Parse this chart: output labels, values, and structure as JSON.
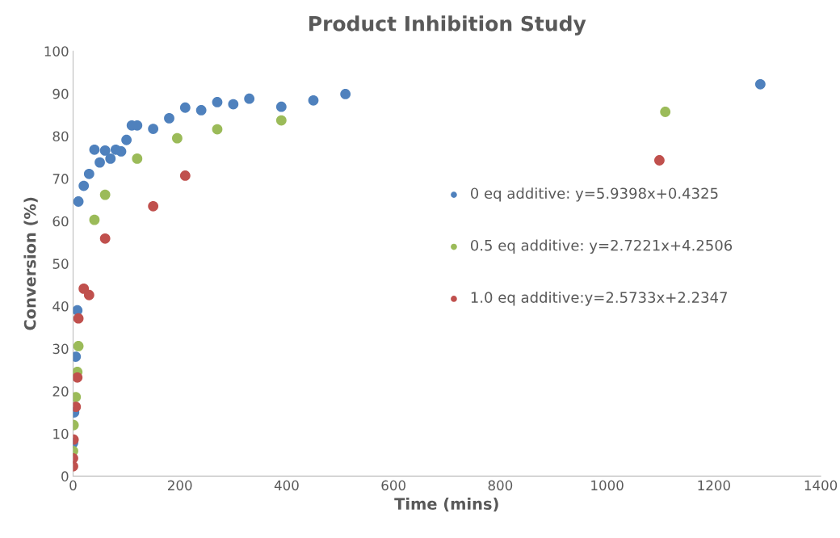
{
  "chart_data": {
    "type": "scatter",
    "title": "Product Inhibition Study",
    "xlabel": "Time (mins)",
    "ylabel": "Conversion (%)",
    "xlim": [
      0,
      1400
    ],
    "xticks": [
      0,
      200,
      400,
      600,
      800,
      1000,
      1200,
      1400
    ],
    "ylim": [
      0,
      100
    ],
    "yticks": [
      0,
      10,
      20,
      30,
      40,
      50,
      60,
      70,
      80,
      90,
      100
    ],
    "grid": false,
    "legend": "right",
    "marker": "circle",
    "series": [
      {
        "name": "0 eq additive: y=5.9398x+0.4325",
        "color": "#4f81bd",
        "x": [
          0,
          2,
          5,
          8,
          10,
          20,
          30,
          40,
          50,
          60,
          70,
          80,
          90,
          100,
          110,
          120,
          150,
          180,
          210,
          240,
          270,
          300,
          330,
          390,
          450,
          510,
          1287
        ],
        "values": [
          7.8,
          15.0,
          28.1,
          39.0,
          64.6,
          68.3,
          71.1,
          76.8,
          73.8,
          76.6,
          74.7,
          76.8,
          76.4,
          79.1,
          82.5,
          82.5,
          81.7,
          84.2,
          86.7,
          86.1,
          88.0,
          87.5,
          88.8,
          86.9,
          88.4,
          89.9,
          92.2
        ]
      },
      {
        "name": "0.5 eq additive: y=2.7221x+4.2506",
        "color": "#9bbb59",
        "x": [
          0,
          1,
          5,
          8,
          10,
          40,
          60,
          120,
          195,
          270,
          390,
          1109
        ],
        "values": [
          5.9,
          12.0,
          18.6,
          24.5,
          30.6,
          60.3,
          66.2,
          74.7,
          79.5,
          81.6,
          83.7,
          85.7
        ]
      },
      {
        "name": "1.0 eq additive:y=2.5733x+2.2347",
        "color": "#c0504d",
        "x": [
          0,
          0,
          1,
          5,
          8,
          10,
          20,
          30,
          60,
          150,
          210,
          1098
        ],
        "values": [
          2.3,
          4.2,
          8.6,
          16.3,
          23.2,
          37.1,
          44.1,
          42.6,
          55.9,
          63.5,
          70.7,
          74.3
        ]
      }
    ]
  }
}
